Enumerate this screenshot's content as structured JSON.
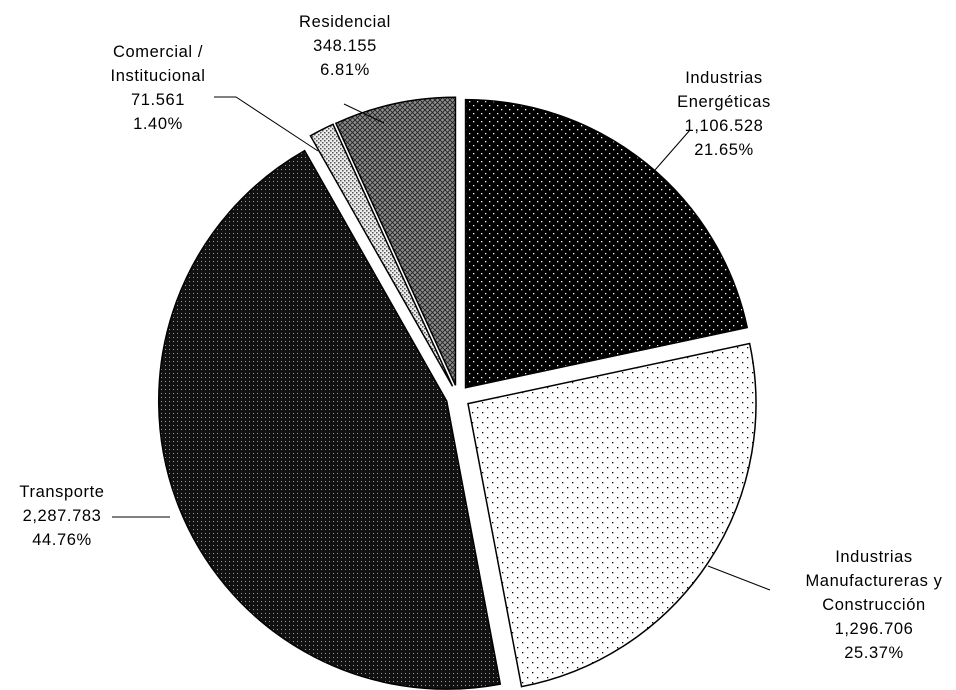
{
  "chart_data": {
    "type": "pie",
    "title": "",
    "legend": "none",
    "slices": [
      {
        "name": "Industrias Energéticas",
        "label_lines": [
          "Industrias",
          "Energéticas"
        ],
        "value": 1106.528,
        "value_text": "1,106.528",
        "percent": 21.65,
        "percent_text": "21.65%",
        "pattern": "dots-on-black"
      },
      {
        "name": "Industrias Manufactureras y Construcción",
        "label_lines": [
          "Industrias",
          "Manufactureras y",
          "Construcción"
        ],
        "value": 1296.706,
        "value_text": "1,296.706",
        "percent": 25.37,
        "percent_text": "25.37%",
        "pattern": "sparse-dots-on-white"
      },
      {
        "name": "Transporte",
        "label_lines": [
          "Transporte"
        ],
        "value": 2287.783,
        "value_text": "2,287.783",
        "percent": 44.76,
        "percent_text": "44.76%",
        "pattern": "dense-dots-on-black"
      },
      {
        "name": "Comercial / Institucional",
        "label_lines": [
          "Comercial /",
          "Institucional"
        ],
        "value": 71.561,
        "value_text": "71.561",
        "percent": 1.4,
        "percent_text": "1.40%",
        "pattern": "dots-on-light-grey"
      },
      {
        "name": "Residencial",
        "label_lines": [
          "Residencial"
        ],
        "value": 348.155,
        "value_text": "348.155",
        "percent": 6.81,
        "percent_text": "6.81%",
        "pattern": "crosshatch-grey"
      }
    ]
  }
}
